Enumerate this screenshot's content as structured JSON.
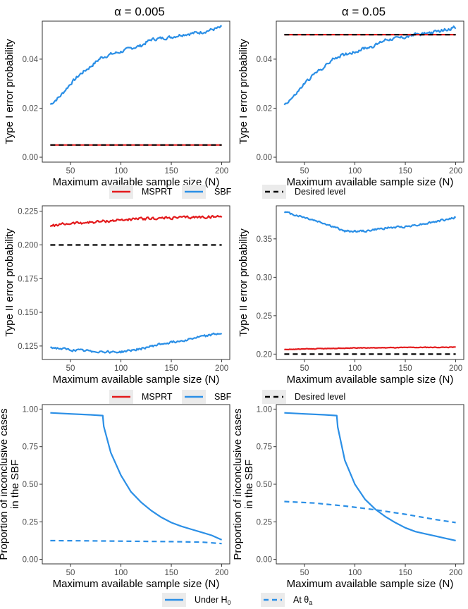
{
  "column_titles": [
    "α = 0.005",
    "α = 0.05"
  ],
  "legends": {
    "row1": [
      {
        "label": "MSPRT",
        "color": "#e31a1c",
        "dash": false
      },
      {
        "label": "SBF",
        "color": "#2b8fe6",
        "dash": false
      },
      {
        "label": "Desired level",
        "color": "#000000",
        "dash": true
      }
    ],
    "row2": [
      {
        "label": "MSPRT",
        "color": "#e31a1c",
        "dash": false
      },
      {
        "label": "SBF",
        "color": "#2b8fe6",
        "dash": false
      },
      {
        "label": "Desired level",
        "color": "#000000",
        "dash": true
      }
    ],
    "row3": [
      {
        "label": "Under H",
        "sub": "0",
        "color": "#2b8fe6",
        "dash": false
      },
      {
        "label": "At θ",
        "sub": "a",
        "color": "#2b8fe6",
        "dash": true
      }
    ]
  },
  "chart_data": [
    {
      "id": "r1c1",
      "type": "line",
      "row": 1,
      "col": 1,
      "title": "α = 0.005",
      "xlabel": "Maximum available sample size (N)",
      "ylabel": "Type I error probability",
      "xlim": [
        22,
        208
      ],
      "ylim": [
        -0.002,
        0.0555
      ],
      "xticks": [
        50,
        100,
        150,
        200
      ],
      "xtick_labels": [
        "50",
        "100",
        "150",
        "200"
      ],
      "yticks": [
        0,
        0.02,
        0.04
      ],
      "ytick_labels": [
        "0.00",
        "0.02",
        "0.04"
      ],
      "series": [
        {
          "name": "SBF",
          "color": "#2b8fe6",
          "dash": false,
          "noise": 0.0009,
          "x": [
            30,
            40,
            50,
            60,
            70,
            80,
            90,
            100,
            110,
            120,
            130,
            140,
            150,
            160,
            170,
            180,
            190,
            200
          ],
          "y": [
            0.0215,
            0.025,
            0.03,
            0.034,
            0.037,
            0.0405,
            0.042,
            0.043,
            0.0445,
            0.0455,
            0.048,
            0.0485,
            0.049,
            0.05,
            0.0505,
            0.051,
            0.052,
            0.053
          ]
        },
        {
          "name": "MSPRT",
          "color": "#e31a1c",
          "dash": false,
          "noise": 0,
          "x": [
            30,
            200
          ],
          "y": [
            0.005,
            0.005
          ]
        },
        {
          "name": "Desired level",
          "color": "#000000",
          "dash": true,
          "noise": 0,
          "x": [
            30,
            200
          ],
          "y": [
            0.005,
            0.005
          ]
        }
      ]
    },
    {
      "id": "r1c2",
      "type": "line",
      "row": 1,
      "col": 2,
      "title": "α = 0.05",
      "xlabel": "Maximum available sample size (N)",
      "ylabel": "Type I error probability",
      "xlim": [
        22,
        208
      ],
      "ylim": [
        -0.002,
        0.0555
      ],
      "xticks": [
        50,
        100,
        150,
        200
      ],
      "xtick_labels": [
        "50",
        "100",
        "150",
        "200"
      ],
      "yticks": [
        0,
        0.02,
        0.04
      ],
      "ytick_labels": [
        "0.00",
        "0.02",
        "0.04"
      ],
      "series": [
        {
          "name": "SBF",
          "color": "#2b8fe6",
          "dash": false,
          "noise": 0.0009,
          "x": [
            30,
            40,
            50,
            60,
            70,
            80,
            90,
            100,
            110,
            120,
            130,
            140,
            150,
            160,
            170,
            180,
            190,
            200
          ],
          "y": [
            0.0215,
            0.025,
            0.03,
            0.034,
            0.037,
            0.0405,
            0.042,
            0.043,
            0.0445,
            0.0455,
            0.048,
            0.0485,
            0.049,
            0.05,
            0.0505,
            0.051,
            0.052,
            0.053
          ]
        },
        {
          "name": "MSPRT",
          "color": "#e31a1c",
          "dash": false,
          "noise": 0,
          "x": [
            30,
            200
          ],
          "y": [
            0.05,
            0.05
          ]
        },
        {
          "name": "Desired level",
          "color": "#000000",
          "dash": true,
          "noise": 0,
          "x": [
            30,
            200
          ],
          "y": [
            0.05,
            0.05
          ]
        }
      ]
    },
    {
      "id": "r2c1",
      "type": "line",
      "row": 2,
      "col": 1,
      "xlabel": "Maximum available sample size (N)",
      "ylabel": "Type II error probability",
      "xlim": [
        22,
        208
      ],
      "ylim": [
        0.115,
        0.229
      ],
      "xticks": [
        50,
        100,
        150,
        200
      ],
      "xtick_labels": [
        "50",
        "100",
        "150",
        "200"
      ],
      "yticks": [
        0.125,
        0.15,
        0.175,
        0.2,
        0.225
      ],
      "ytick_labels": [
        "0.125",
        "0.150",
        "0.175",
        "0.200",
        "0.225"
      ],
      "series": [
        {
          "name": "MSPRT",
          "color": "#e31a1c",
          "dash": false,
          "noise": 0.0014,
          "x": [
            30,
            50,
            75,
            100,
            125,
            150,
            175,
            200
          ],
          "y": [
            0.214,
            0.216,
            0.217,
            0.2185,
            0.2195,
            0.22,
            0.2205,
            0.221
          ]
        },
        {
          "name": "SBF",
          "color": "#2b8fe6",
          "dash": false,
          "noise": 0.0012,
          "x": [
            30,
            50,
            75,
            100,
            120,
            140,
            160,
            180,
            200
          ],
          "y": [
            0.124,
            0.122,
            0.121,
            0.1205,
            0.123,
            0.1265,
            0.129,
            0.132,
            0.1345
          ]
        },
        {
          "name": "Desired level",
          "color": "#000000",
          "dash": true,
          "noise": 0,
          "x": [
            30,
            200
          ],
          "y": [
            0.2,
            0.2
          ]
        }
      ]
    },
    {
      "id": "r2c2",
      "type": "line",
      "row": 2,
      "col": 2,
      "xlabel": "Maximum available sample size (N)",
      "ylabel": "Type II error probability",
      "xlim": [
        22,
        208
      ],
      "ylim": [
        0.193,
        0.393
      ],
      "xticks": [
        50,
        100,
        150,
        200
      ],
      "xtick_labels": [
        "50",
        "100",
        "150",
        "200"
      ],
      "yticks": [
        0.2,
        0.25,
        0.3,
        0.35
      ],
      "ytick_labels": [
        "0.20",
        "0.25",
        "0.30",
        "0.35"
      ],
      "series": [
        {
          "name": "SBF",
          "color": "#2b8fe6",
          "dash": false,
          "noise": 0.0018,
          "x": [
            30,
            50,
            70,
            90,
            110,
            130,
            150,
            170,
            190,
            200
          ],
          "y": [
            0.385,
            0.378,
            0.37,
            0.36,
            0.36,
            0.364,
            0.366,
            0.37,
            0.375,
            0.378
          ]
        },
        {
          "name": "MSPRT",
          "color": "#e31a1c",
          "dash": false,
          "noise": 0.0006,
          "x": [
            30,
            100,
            200
          ],
          "y": [
            0.206,
            0.208,
            0.209
          ]
        },
        {
          "name": "Desired level",
          "color": "#000000",
          "dash": true,
          "noise": 0,
          "x": [
            30,
            200
          ],
          "y": [
            0.2,
            0.2
          ]
        }
      ]
    },
    {
      "id": "r3c1",
      "type": "line",
      "row": 3,
      "col": 1,
      "xlabel": "Maximum available sample size (N)",
      "ylabel": "Proportion of inconclusive cases in the SBF",
      "xlim": [
        22,
        208
      ],
      "ylim": [
        -0.03,
        1.03
      ],
      "xticks": [
        50,
        100,
        150,
        200
      ],
      "xtick_labels": [
        "50",
        "100",
        "150",
        "200"
      ],
      "yticks": [
        0,
        0.25,
        0.5,
        0.75,
        1.0
      ],
      "ytick_labels": [
        "0.00",
        "0.25",
        "0.50",
        "0.75",
        "1.00"
      ],
      "series": [
        {
          "name": "Under H0",
          "color": "#2b8fe6",
          "dash": false,
          "noise": 0,
          "x": [
            30,
            50,
            70,
            82,
            83,
            90,
            100,
            110,
            120,
            130,
            140,
            150,
            160,
            170,
            180,
            190,
            200
          ],
          "y": [
            0.975,
            0.968,
            0.962,
            0.957,
            0.885,
            0.71,
            0.56,
            0.45,
            0.38,
            0.325,
            0.28,
            0.245,
            0.22,
            0.2,
            0.18,
            0.16,
            0.13
          ]
        },
        {
          "name": "At θa",
          "color": "#2b8fe6",
          "dash": true,
          "noise": 0,
          "x": [
            30,
            60,
            90,
            120,
            150,
            180,
            200
          ],
          "y": [
            0.125,
            0.124,
            0.122,
            0.12,
            0.118,
            0.115,
            0.105
          ]
        }
      ]
    },
    {
      "id": "r3c2",
      "type": "line",
      "row": 3,
      "col": 2,
      "xlabel": "Maximum available sample size (N)",
      "ylabel": "Proportion of inconclusive cases in the SBF",
      "xlim": [
        22,
        208
      ],
      "ylim": [
        -0.03,
        1.03
      ],
      "xticks": [
        50,
        100,
        150,
        200
      ],
      "xtick_labels": [
        "50",
        "100",
        "150",
        "200"
      ],
      "yticks": [
        0,
        0.25,
        0.5,
        0.75,
        1.0
      ],
      "ytick_labels": [
        "0.00",
        "0.25",
        "0.50",
        "0.75",
        "1.00"
      ],
      "series": [
        {
          "name": "Under H0",
          "color": "#2b8fe6",
          "dash": false,
          "noise": 0,
          "x": [
            30,
            50,
            70,
            82,
            83,
            90,
            100,
            110,
            120,
            130,
            140,
            150,
            160,
            170,
            180,
            190,
            200
          ],
          "y": [
            0.975,
            0.968,
            0.962,
            0.957,
            0.88,
            0.66,
            0.5,
            0.4,
            0.335,
            0.285,
            0.245,
            0.21,
            0.185,
            0.17,
            0.155,
            0.14,
            0.125
          ]
        },
        {
          "name": "At θa",
          "color": "#2b8fe6",
          "dash": true,
          "noise": 0,
          "x": [
            30,
            60,
            90,
            120,
            150,
            180,
            200
          ],
          "y": [
            0.385,
            0.375,
            0.355,
            0.33,
            0.3,
            0.265,
            0.245
          ]
        }
      ]
    }
  ]
}
